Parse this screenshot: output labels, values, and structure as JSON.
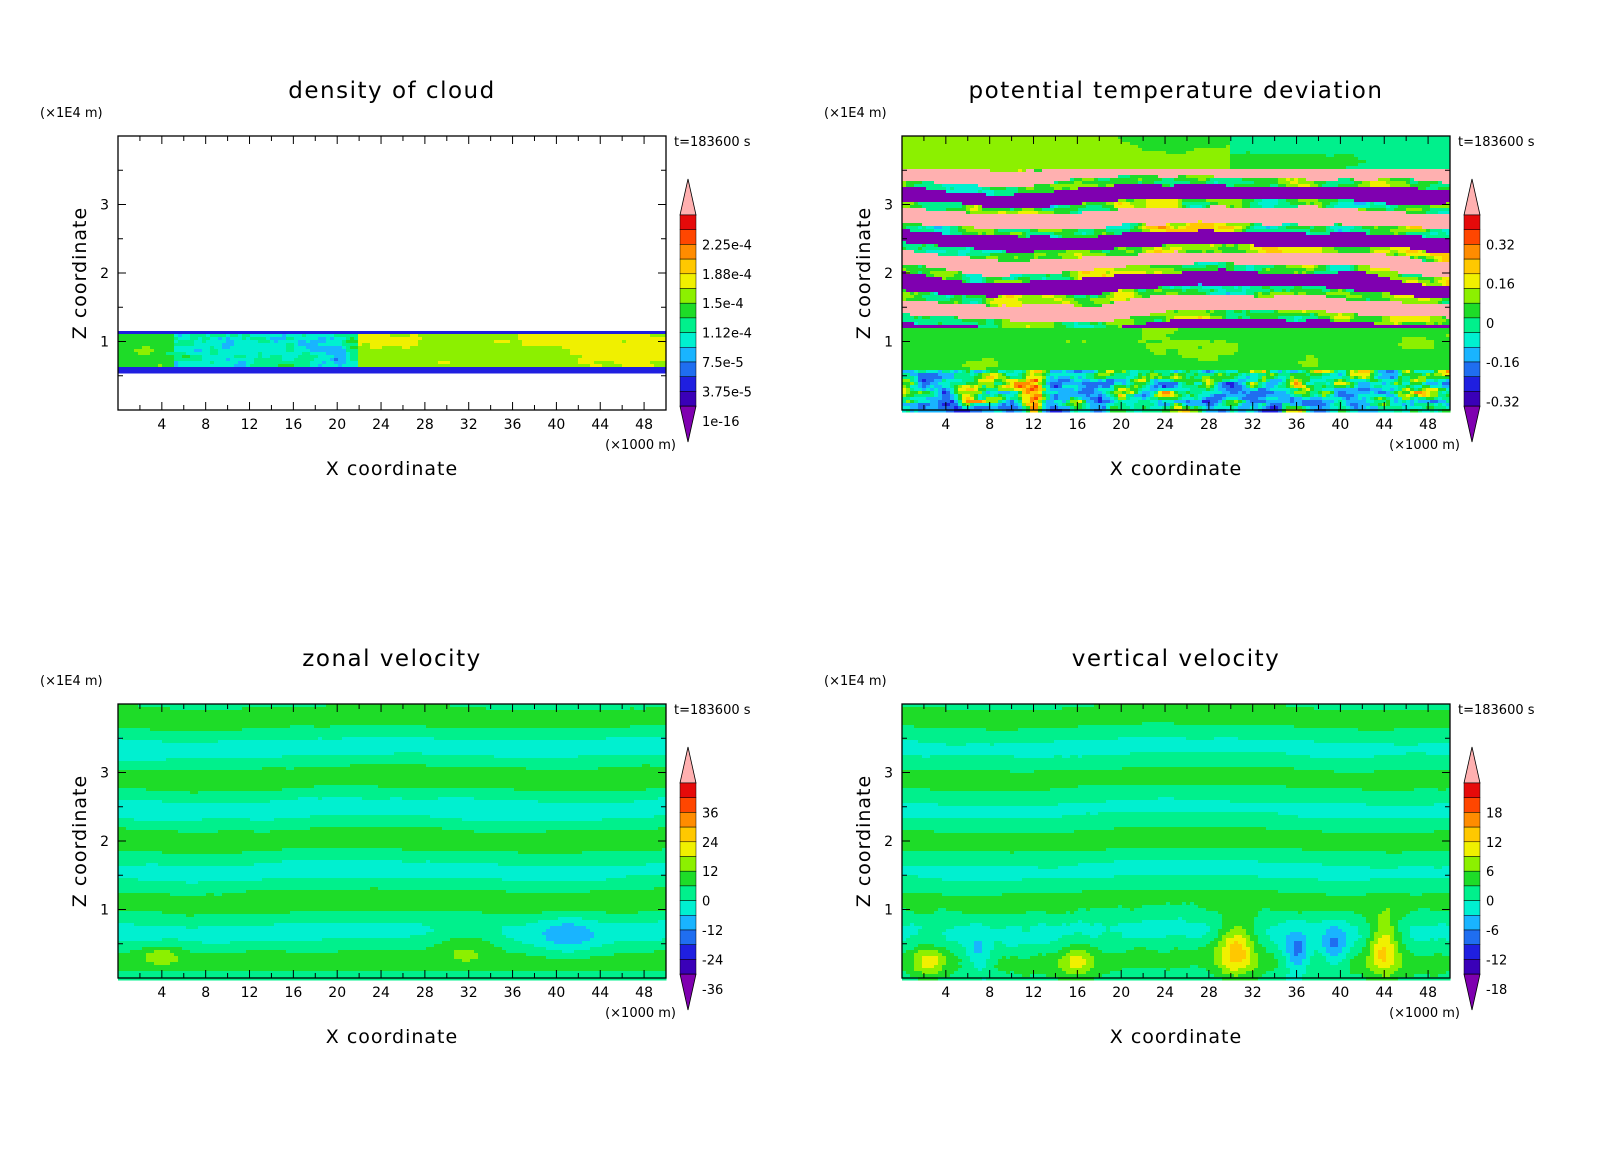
{
  "colors": {
    "palette": [
      "#7f00b0",
      "#3a00b8",
      "#1f1fe0",
      "#1f6ef0",
      "#19b4ff",
      "#00f0d0",
      "#00f08c",
      "#1edc28",
      "#8cf000",
      "#f0f000",
      "#ffc800",
      "#ff8c00",
      "#ff4600",
      "#e60a0a",
      "#ffb0b0"
    ],
    "background": "#ffffff",
    "axis": "#000000"
  },
  "chart_data": [
    {
      "type": "heatmap",
      "title": "density of cloud",
      "xlabel": "X coordinate",
      "ylabel": "Z coordinate",
      "x_unit": "(×1000 m)",
      "y_unit": "(×1E4 m)",
      "time_label": "t=183600 s",
      "xlim": [
        0,
        50
      ],
      "ylim": [
        0,
        4
      ],
      "x_ticks": [
        "4",
        "8",
        "12",
        "16",
        "20",
        "24",
        "28",
        "32",
        "36",
        "40",
        "44",
        "48"
      ],
      "y_ticks": [
        "1",
        "2",
        "3"
      ],
      "colorbar_labels": [
        "2.25e-4",
        "1.88e-4",
        "1.5e-4",
        "1.12e-4",
        "7.5e-5",
        "3.75e-5",
        "1e-16"
      ],
      "colorbar_range": [
        0,
        0.000262
      ],
      "cloud_layer": {
        "z_bottom": 0.55,
        "z_top": 1.15
      }
    },
    {
      "type": "heatmap",
      "title": "potential temperature deviation",
      "xlabel": "X coordinate",
      "ylabel": "Z coordinate",
      "x_unit": "(×1000 m)",
      "y_unit": "(×1E4 m)",
      "time_label": "t=183600 s",
      "xlim": [
        0,
        50
      ],
      "ylim": [
        0,
        4
      ],
      "x_ticks": [
        "4",
        "8",
        "12",
        "16",
        "20",
        "24",
        "28",
        "32",
        "36",
        "40",
        "44",
        "48"
      ],
      "y_ticks": [
        "1",
        "2",
        "3"
      ],
      "colorbar_labels": [
        "0.32",
        "0.16",
        "0",
        "-0.16",
        "-0.32"
      ],
      "colorbar_range": [
        -0.48,
        0.48
      ]
    },
    {
      "type": "heatmap",
      "title": "zonal velocity",
      "xlabel": "X coordinate",
      "ylabel": "Z coordinate",
      "x_unit": "(×1000 m)",
      "y_unit": "(×1E4 m)",
      "time_label": "t=183600 s",
      "xlim": [
        0,
        50
      ],
      "ylim": [
        0,
        4
      ],
      "x_ticks": [
        "4",
        "8",
        "12",
        "16",
        "20",
        "24",
        "28",
        "32",
        "36",
        "40",
        "44",
        "48"
      ],
      "y_ticks": [
        "1",
        "2",
        "3"
      ],
      "colorbar_labels": [
        "36",
        "24",
        "12",
        "0",
        "-12",
        "-24",
        "-36"
      ],
      "colorbar_range": [
        -42,
        42
      ]
    },
    {
      "type": "heatmap",
      "title": "vertical velocity",
      "xlabel": "X coordinate",
      "ylabel": "Z coordinate",
      "x_unit": "(×1000 m)",
      "y_unit": "(×1E4 m)",
      "time_label": "t=183600 s",
      "xlim": [
        0,
        50
      ],
      "ylim": [
        0,
        4
      ],
      "x_ticks": [
        "4",
        "8",
        "12",
        "16",
        "20",
        "24",
        "28",
        "32",
        "36",
        "40",
        "44",
        "48"
      ],
      "y_ticks": [
        "1",
        "2",
        "3"
      ],
      "colorbar_labels": [
        "18",
        "12",
        "6",
        "0",
        "-6",
        "-12",
        "-18"
      ],
      "colorbar_range": [
        -21,
        21
      ]
    }
  ]
}
